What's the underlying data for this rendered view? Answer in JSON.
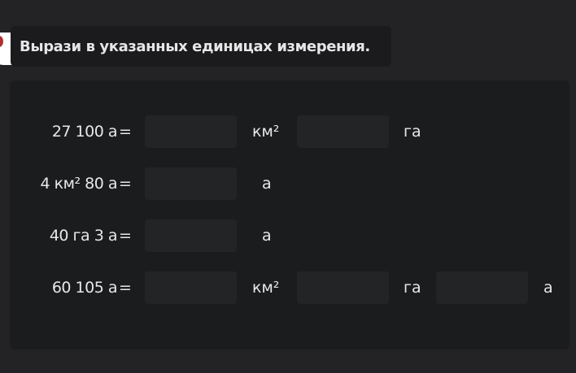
{
  "title": "Вырази в указанных единицах измерения.",
  "rows": [
    {
      "lhs": "27 100 а",
      "eq": "=",
      "inputs": [
        "",
        ""
      ],
      "units": [
        "км²",
        "га"
      ]
    },
    {
      "lhs": "4 км² 80 а",
      "eq": "=",
      "inputs": [
        ""
      ],
      "units": [
        "а"
      ]
    },
    {
      "lhs": "40 га 3 а",
      "eq": "=",
      "inputs": [
        ""
      ],
      "units": [
        "а"
      ]
    },
    {
      "lhs": "60 105 а",
      "eq": "=",
      "inputs": [
        "",
        "",
        ""
      ],
      "units": [
        "км²",
        "га",
        "а"
      ]
    }
  ]
}
